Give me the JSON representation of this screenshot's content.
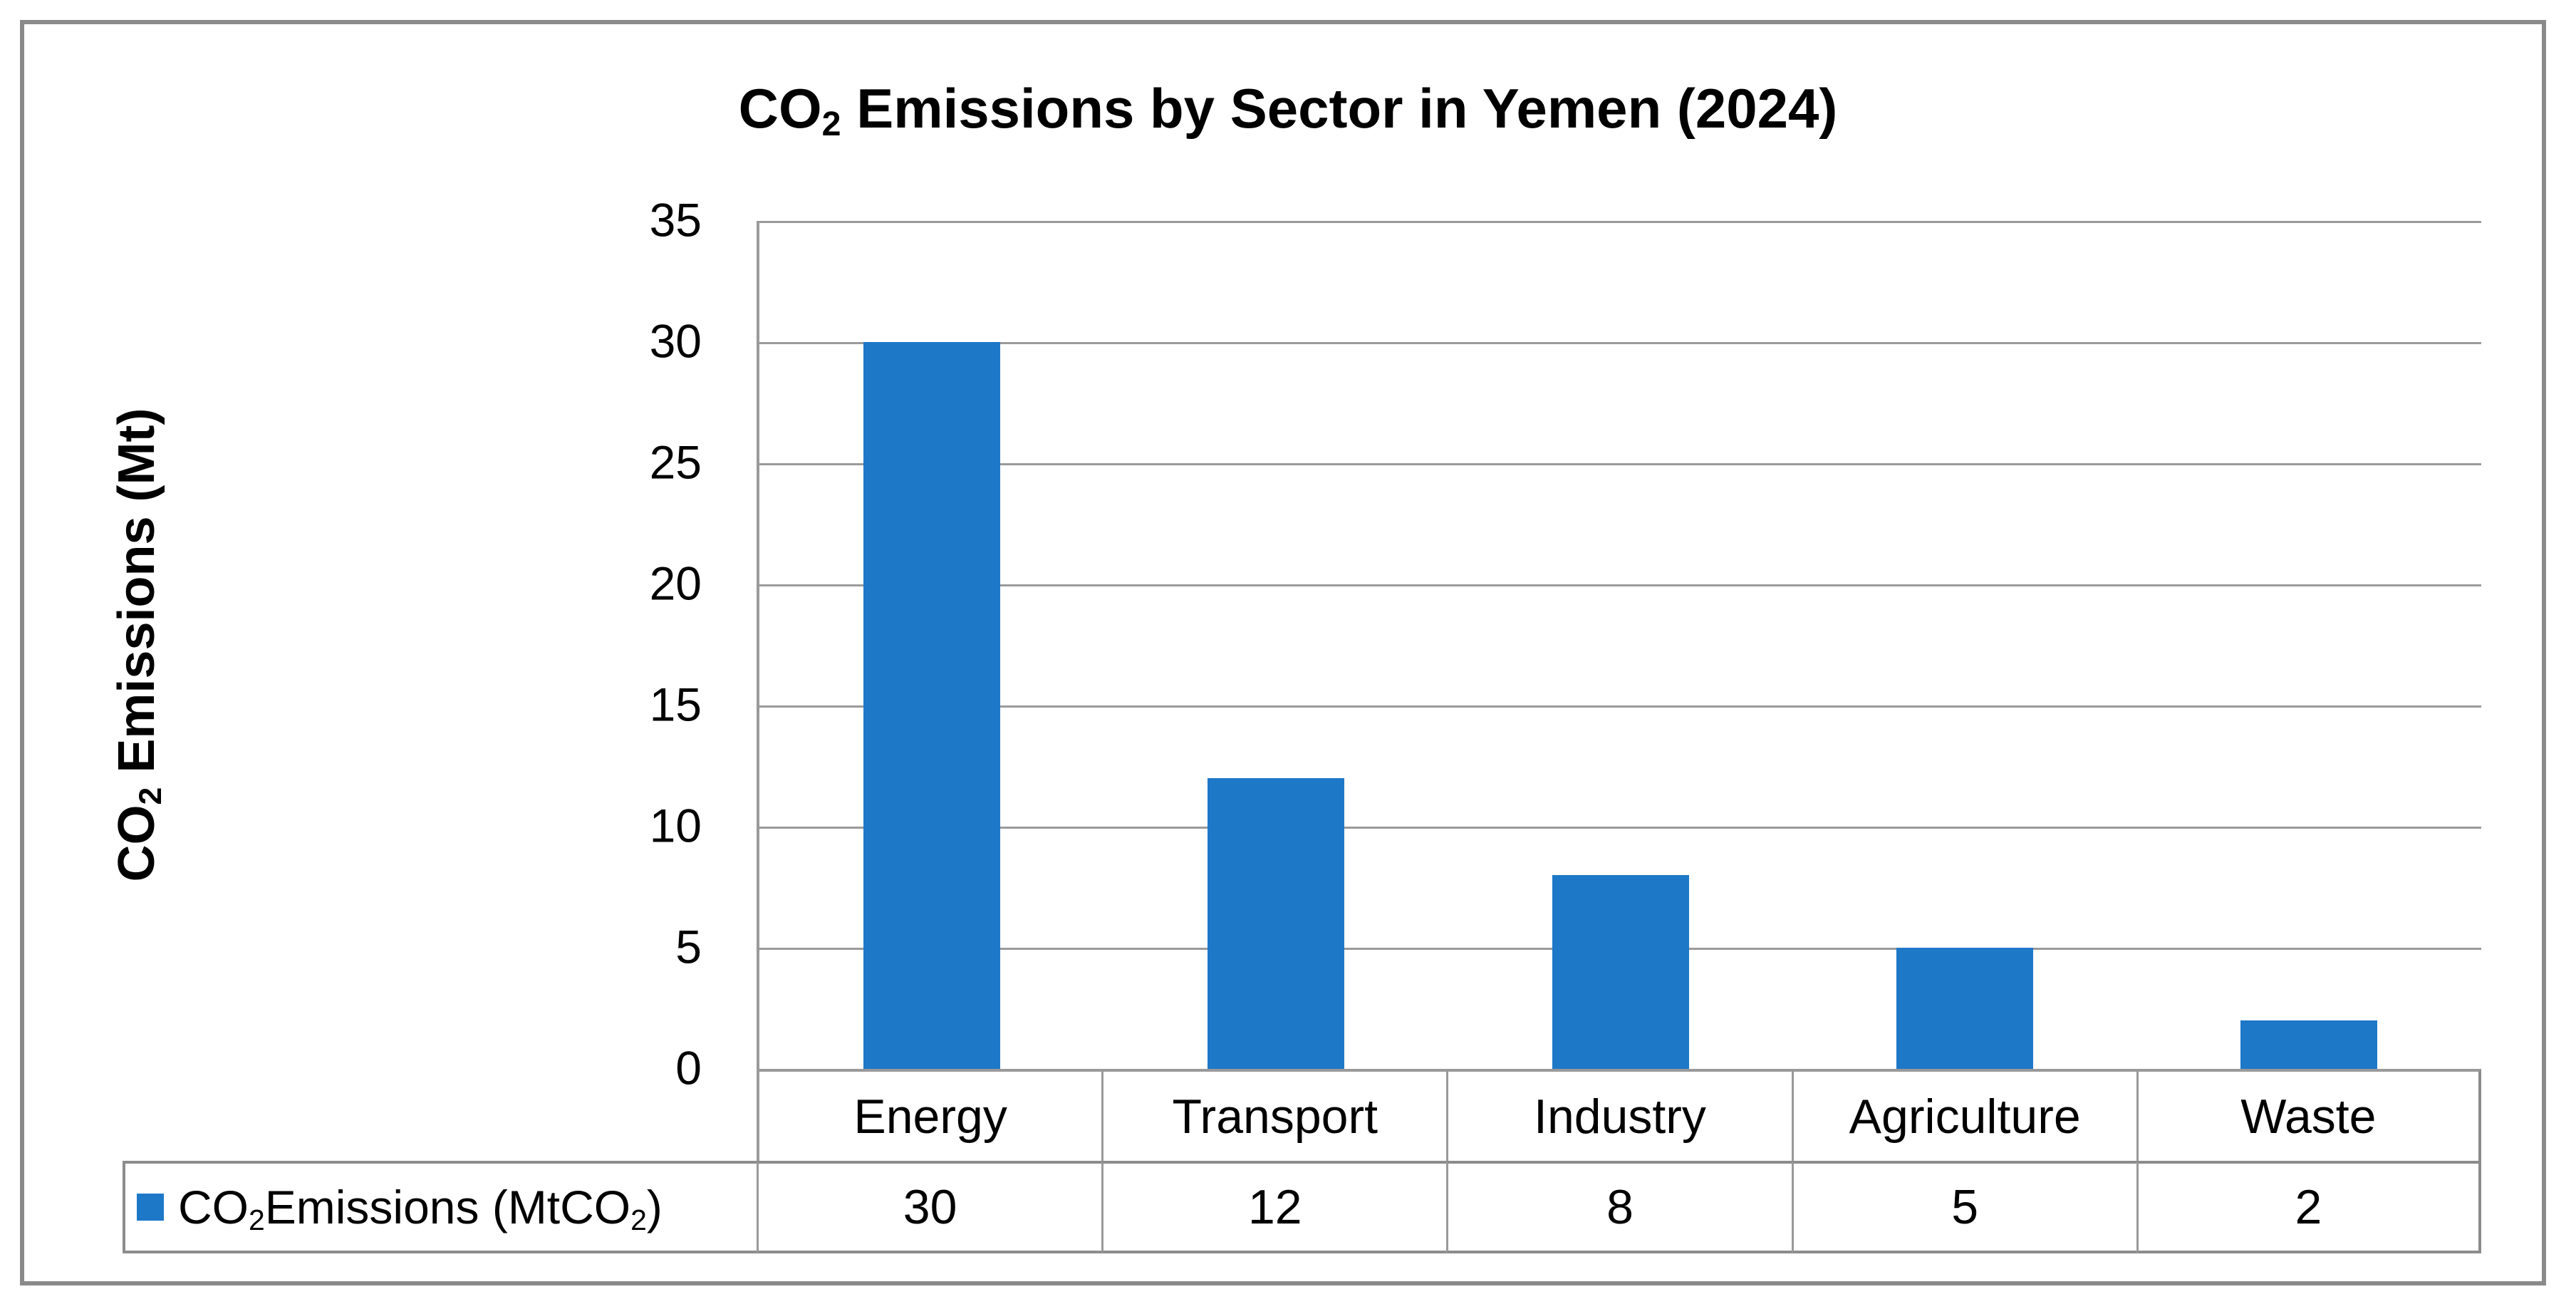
{
  "chart_data": {
    "type": "bar",
    "title": "CO₂ Emissions by Sector in Yemen (2024)",
    "categories": [
      "Energy",
      "Transport",
      "Industry",
      "Agriculture",
      "Waste"
    ],
    "series": [
      {
        "name": "CO₂ Emissions (MtCO₂)",
        "values": [
          30,
          12,
          8,
          5,
          2
        ]
      }
    ],
    "xlabel": "",
    "ylabel": "CO₂ Emissions (Mt)",
    "ylim": [
      0,
      35
    ],
    "ytick_step": 5,
    "grid": true,
    "legend_position": "bottom-data-table",
    "bar_color": "#1E78C8"
  },
  "title": {
    "pre": "CO",
    "sub": "2",
    "post": " Emissions by Sector in Yemen (2024)"
  },
  "y_axis": {
    "label_pre": "CO",
    "label_sub": "2",
    "label_post": " Emissions (Mt)",
    "ticks": [
      "35",
      "30",
      "25",
      "20",
      "15",
      "10",
      "5",
      "0"
    ]
  },
  "data_table": {
    "legend": {
      "pre": "CO",
      "sub1": "2",
      "mid": " Emissions (MtCO",
      "sub2": "2",
      "post": ")"
    },
    "values": [
      "30",
      "12",
      "8",
      "5",
      "2"
    ]
  },
  "colors": {
    "bar": "#1E78C8",
    "grid": "#9A9A9A",
    "table_border": "#8C8C8C",
    "frame": "#8A8A8A",
    "text": "#000000",
    "background": "#FFFFFF"
  }
}
